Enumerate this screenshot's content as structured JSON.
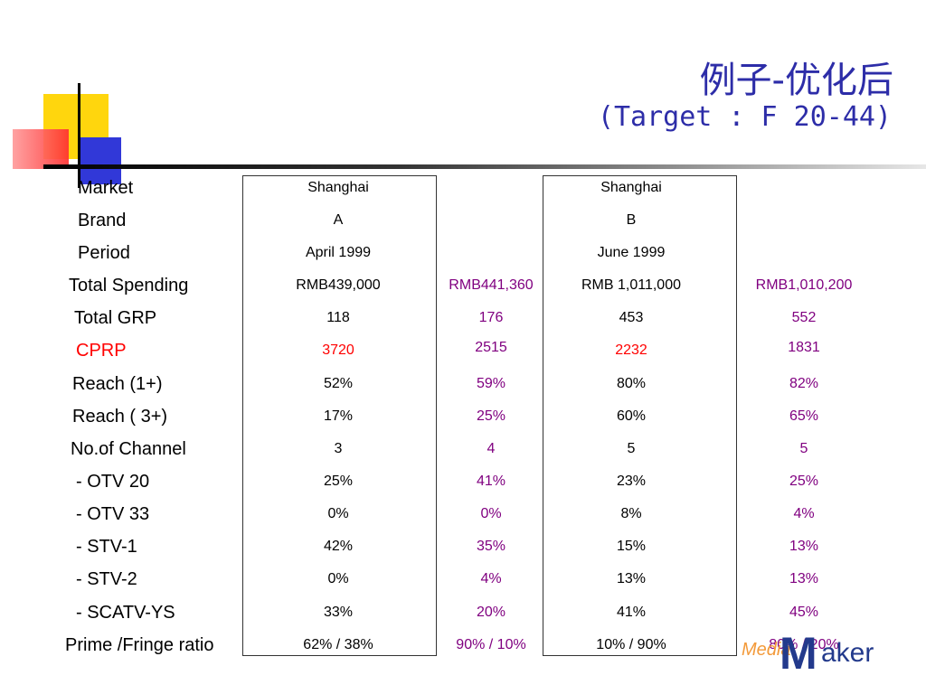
{
  "title": {
    "cn": "例子-优化后",
    "en": "(Target : F 20-44)"
  },
  "rows": [
    {
      "label": "Market",
      "a": "Shanghai",
      "a_opt": "",
      "b": "Shanghai",
      "b_opt": ""
    },
    {
      "label": "Brand",
      "a": "A",
      "a_opt": "",
      "b": "B",
      "b_opt": ""
    },
    {
      "label": "Period",
      "a": "April 1999",
      "a_opt": "",
      "b": "June 1999",
      "b_opt": ""
    },
    {
      "label": "Total Spending",
      "a": "RMB439,000",
      "a_opt": "RMB441,360",
      "b": "RMB 1,011,000",
      "b_opt": "RMB1,010,200"
    },
    {
      "label": "Total GRP",
      "a": "118",
      "a_opt": "176",
      "b": "453",
      "b_opt": "552"
    },
    {
      "label": "CPRP",
      "a": "3720",
      "a_opt": "2515",
      "b": "2232",
      "b_opt": "1831"
    },
    {
      "label": "Reach (1+)",
      "a": "52%",
      "a_opt": "59%",
      "b": "80%",
      "b_opt": "82%"
    },
    {
      "label": "Reach ( 3+)",
      "a": "17%",
      "a_opt": "25%",
      "b": "60%",
      "b_opt": "65%"
    },
    {
      "label": "No.of Channel",
      "a": "3",
      "a_opt": "4",
      "b": "5",
      "b_opt": "5"
    },
    {
      "label": " - OTV 20",
      "a": "25%",
      "a_opt": "41%",
      "b": "23%",
      "b_opt": "25%"
    },
    {
      "label": " - OTV 33",
      "a": "0%",
      "a_opt": "0%",
      "b": "8%",
      "b_opt": "4%"
    },
    {
      "label": " - STV-1",
      "a": "42%",
      "a_opt": "35%",
      "b": "15%",
      "b_opt": "13%"
    },
    {
      "label": " - STV-2",
      "a": "0%",
      "a_opt": "4%",
      "b": "13%",
      "b_opt": "13%"
    },
    {
      "label": " - SCATV-YS",
      "a": "33%",
      "a_opt": "20%",
      "b": "41%",
      "b_opt": "45%"
    },
    {
      "label": "Prime /Fringe ratio",
      "a": "62% / 38%",
      "a_opt": "90% / 10%",
      "b": "10% / 90%",
      "b_opt": "80% / 20%"
    }
  ],
  "logo": {
    "media": "Media",
    "m": "M",
    "aker": "aker"
  },
  "colors": {
    "title": "#2d2da8",
    "optimized": "#800080",
    "cprp": "#ff0000"
  }
}
